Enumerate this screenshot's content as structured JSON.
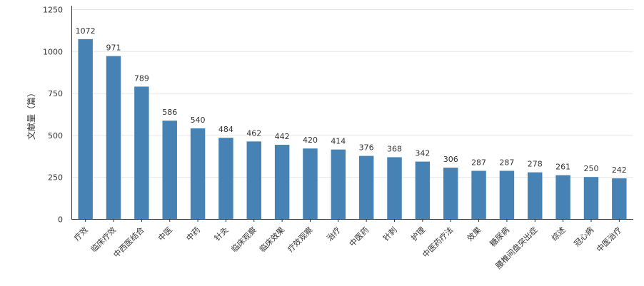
{
  "chart_data": {
    "type": "bar",
    "ylabel": "文献量（篇）",
    "ylim": [
      0,
      1250
    ],
    "yticks": [
      0,
      250,
      500,
      750,
      1000,
      1250
    ],
    "grid": true,
    "bar_color": "#4682b4",
    "categories": [
      "疗效",
      "临床疗效",
      "中西医结合",
      "中医",
      "中药",
      "针灸",
      "临床观察",
      "临床效果",
      "疗效观察",
      "治疗",
      "中医药",
      "针刺",
      "护理",
      "中医药疗法",
      "效果",
      "糖尿病",
      "腰椎间盘突出症",
      "综述",
      "冠心病",
      "中医治疗"
    ],
    "values": [
      1072,
      971,
      789,
      586,
      540,
      484,
      462,
      442,
      420,
      414,
      376,
      368,
      342,
      306,
      287,
      287,
      278,
      261,
      250,
      242
    ]
  }
}
